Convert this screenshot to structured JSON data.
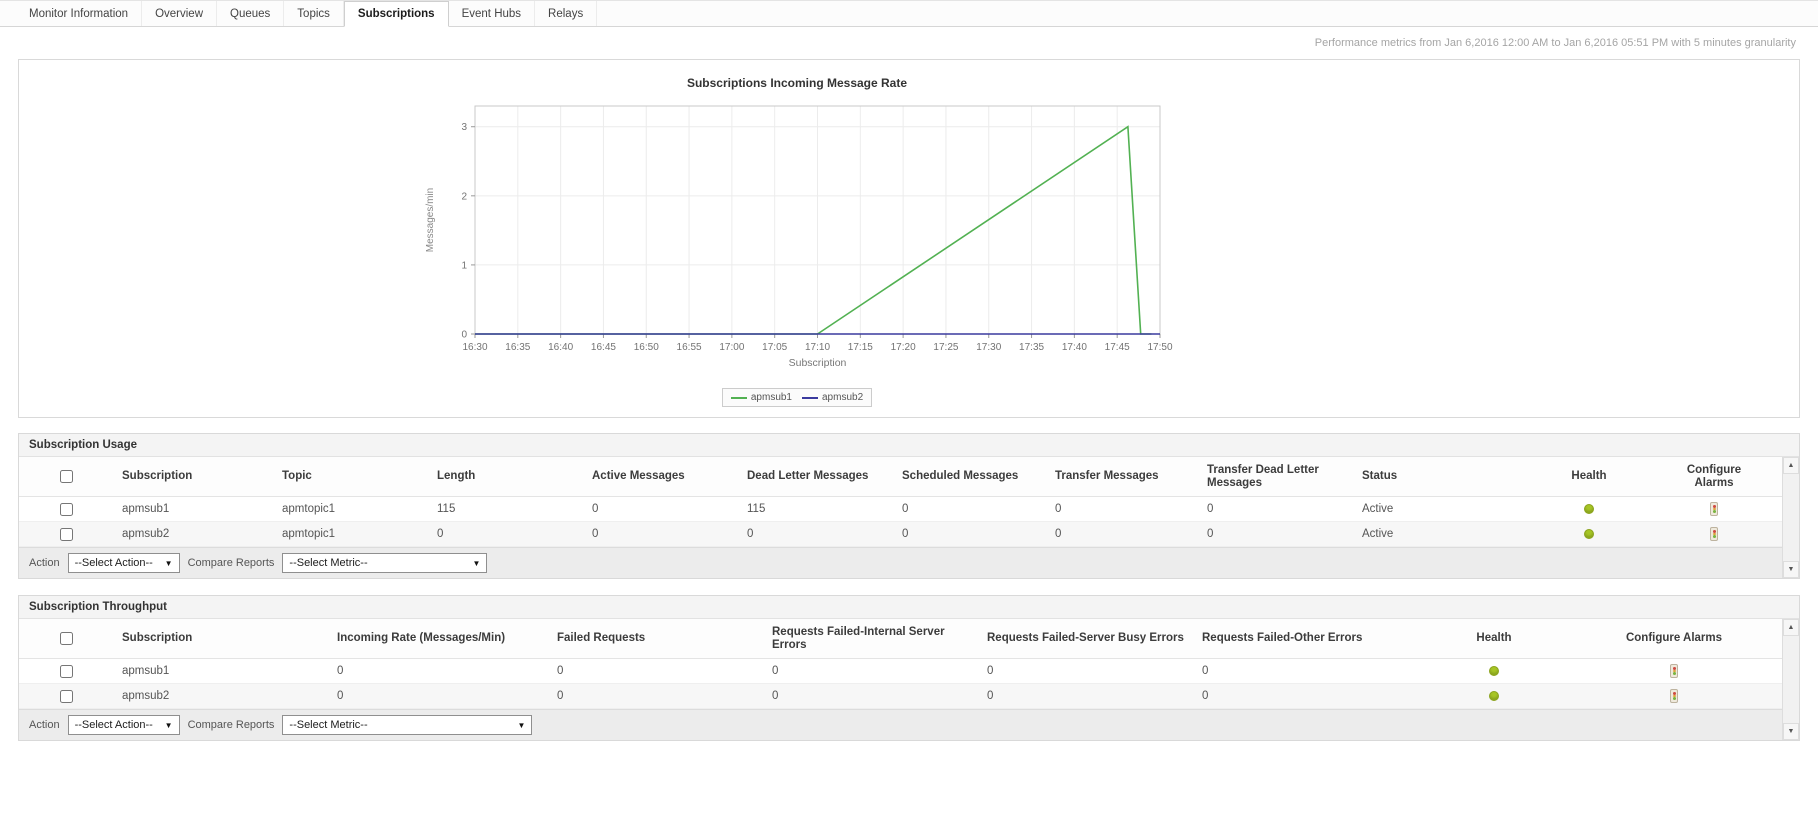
{
  "tabs": [
    {
      "label": "Monitor Information",
      "active": false
    },
    {
      "label": "Overview",
      "active": false
    },
    {
      "label": "Queues",
      "active": false
    },
    {
      "label": "Topics",
      "active": false
    },
    {
      "label": "Subscriptions",
      "active": true
    },
    {
      "label": "Event Hubs",
      "active": false
    },
    {
      "label": "Relays",
      "active": false
    }
  ],
  "metrics_note": "Performance metrics from Jan 6,2016 12:00 AM to Jan 6,2016 05:51 PM with 5 minutes granularity",
  "chart_data": {
    "type": "line",
    "title": "Subscriptions Incoming Message Rate",
    "ylabel": "Messages/min",
    "xlabel": "Subscription",
    "ylim": [
      0,
      3
    ],
    "yticks": [
      0,
      1,
      2,
      3
    ],
    "grid": true,
    "legend_position": "bottom",
    "x_ticks": [
      "16:30",
      "16:35",
      "16:40",
      "16:45",
      "16:50",
      "16:55",
      "17:00",
      "17:05",
      "17:10",
      "17:15",
      "17:20",
      "17:25",
      "17:30",
      "17:35",
      "17:40",
      "17:45",
      "17:50"
    ],
    "series": [
      {
        "name": "apmsub1",
        "color": "#52b152",
        "points": [
          [
            0,
            0
          ],
          [
            8,
            0
          ],
          [
            15.25,
            3
          ],
          [
            15.55,
            0
          ],
          [
            15.8,
            0
          ]
        ]
      },
      {
        "name": "apmsub2",
        "color": "#3a3a9e",
        "points": [
          [
            0,
            0
          ],
          [
            16,
            0
          ]
        ]
      }
    ]
  },
  "usage_table": {
    "title": "Subscription Usage",
    "columns": [
      "Subscription",
      "Topic",
      "Length",
      "Active Messages",
      "Dead Letter Messages",
      "Scheduled Messages",
      "Transfer Messages",
      "Transfer Dead Letter Messages",
      "Status",
      "Health",
      "Configure Alarms"
    ],
    "rows": [
      [
        "apmsub1",
        "apmtopic1",
        "115",
        "0",
        "115",
        "0",
        "0",
        "0",
        "Active"
      ],
      [
        "apmsub2",
        "apmtopic1",
        "0",
        "0",
        "0",
        "0",
        "0",
        "0",
        "Active"
      ]
    ],
    "action_label": "Action",
    "action_value": "--Select Action--",
    "compare_label": "Compare Reports",
    "compare_value": "--Select Metric--"
  },
  "throughput_table": {
    "title": "Subscription Throughput",
    "columns": [
      "Subscription",
      "Incoming Rate (Messages/Min)",
      "Failed Requests",
      "Requests Failed-Internal Server Errors",
      "Requests Failed-Server Busy Errors",
      "Requests Failed-Other Errors",
      "Health",
      "Configure Alarms"
    ],
    "rows": [
      [
        "apmsub1",
        "0",
        "0",
        "0",
        "0",
        "0"
      ],
      [
        "apmsub2",
        "0",
        "0",
        "0",
        "0",
        "0"
      ]
    ],
    "action_label": "Action",
    "action_value": "--Select Action--",
    "compare_label": "Compare Reports",
    "compare_value": "--Select Metric--"
  },
  "colors": {
    "health_ok": "#a6c525",
    "series1": "#52b152",
    "series2": "#3a3a9e"
  }
}
